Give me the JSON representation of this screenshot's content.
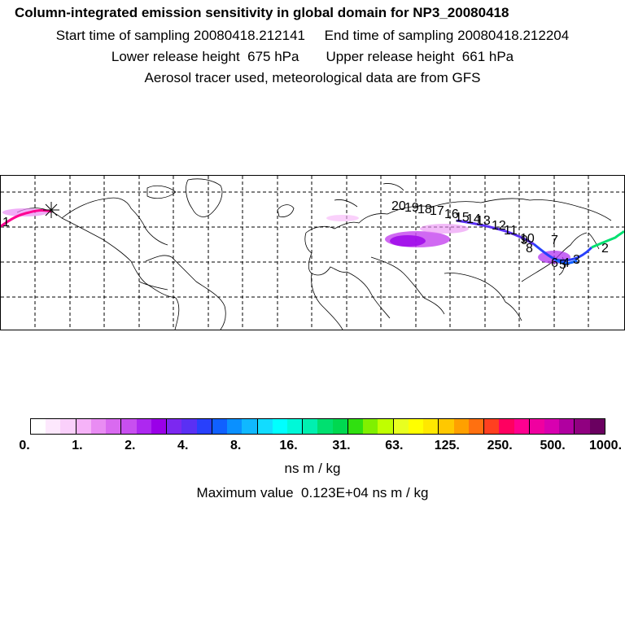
{
  "title": "Column-integrated emission sensitivity in global domain for NP3_20080418",
  "sampling": {
    "start": "Start time of sampling 20080418.212141",
    "end": "End time of sampling 20080418.212204"
  },
  "release": {
    "lower": "Lower release height  675 hPa",
    "upper": "Upper release height  661 hPa"
  },
  "note": "Aerosol tracer used, meteorological data are from GFS",
  "colorbar": {
    "colors": [
      "#ffffff",
      "#fde8fd",
      "#fad0fb",
      "#f6b3f8",
      "#e98cf3",
      "#d96af0",
      "#c84ff0",
      "#ad28f0",
      "#9a00e8",
      "#7c28f0",
      "#5a30f4",
      "#2840fc",
      "#1060ff",
      "#0a90ff",
      "#10b8ff",
      "#12dcff",
      "#00ffff",
      "#00f8d8",
      "#00f0b0",
      "#00e070",
      "#00d850",
      "#30e010",
      "#80f000",
      "#c0ff00",
      "#e8ff20",
      "#ffff00",
      "#ffe800",
      "#ffc800",
      "#ffa000",
      "#ff7010",
      "#ff4020",
      "#ff0060",
      "#ff0090",
      "#f000a0",
      "#d800b0",
      "#b000a0",
      "#900080",
      "#6a0060"
    ],
    "ticks": [
      "0.",
      "1.",
      "2.",
      "4.",
      "8.",
      "16.",
      "31.",
      "63.",
      "125.",
      "250.",
      "500.",
      "1000."
    ],
    "unit": "ns m / kg",
    "max_value": "Maximum value  0.123E+04 ns m / kg"
  },
  "map": {
    "grid": true,
    "trajectory_labels": [
      "1",
      "2",
      "3",
      "4",
      "5",
      "6",
      "7",
      "8",
      "9",
      "10",
      "11",
      "12",
      "13",
      "14",
      "15",
      "16",
      "17",
      "18",
      "19",
      "20"
    ],
    "marker": "release-point-star"
  }
}
